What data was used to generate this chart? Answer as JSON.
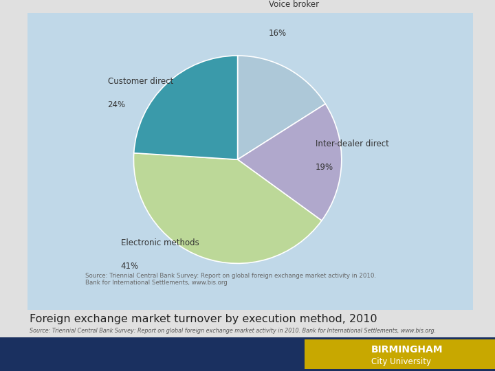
{
  "slices": [
    16,
    19,
    41,
    24
  ],
  "slice_labels": [
    "Voice broker",
    "Inter-dealer direct",
    "Electronic methods",
    "Customer direct"
  ],
  "percentages": [
    "16%",
    "19%",
    "41%",
    "24%"
  ],
  "colors": [
    "#adc8d8",
    "#b0a8cc",
    "#bcd898",
    "#3a9aaa"
  ],
  "startangle": 90,
  "chart_bg": "#c0d8e8",
  "page_bg": "#e0e0e0",
  "source_text_line1": "Source: Triennial Central Bank Survey: Report on global foreign exchange market activity in 2010.",
  "source_text_line2": "Bank for International Settlements, www.bis.org",
  "title": "Foreign exchange market turnover by execution method, 2010",
  "subtitle": "Source: Triennial Central Bank Survey: Report on global foreign exchange market activity in 2010. Bank for International Settlements, www.bis.org.",
  "footer_bg": "#1a3060",
  "logo_bg": "#c8a800",
  "bcu_line1": "BIRMINGHAM",
  "bcu_line2": "City University",
  "label_color": "#333333",
  "source_color": "#666666",
  "title_color": "#222222"
}
